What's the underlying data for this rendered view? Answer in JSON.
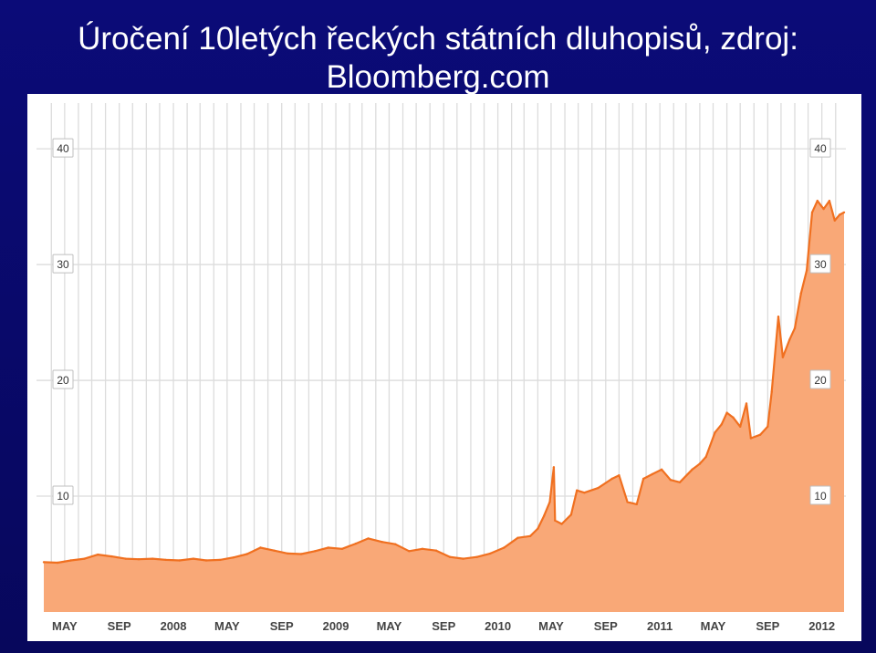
{
  "slide": {
    "title_line1": "Úročení 10letých řeckých státních dluhopisů, zdroj:",
    "title_line2": "Bloomberg.com"
  },
  "colors": {
    "background": "#0a0a6e",
    "line": "#f07020",
    "fill": "#f9a877",
    "grid": "#dcdcdc"
  },
  "chart_data": {
    "type": "area",
    "title": "",
    "xlabel": "",
    "ylabel": "",
    "ylim": [
      0,
      43
    ],
    "grid": true,
    "x_tick_labels": [
      "MAY",
      "SEP",
      "2008",
      "MAY",
      "SEP",
      "2009",
      "MAY",
      "SEP",
      "2010",
      "MAY",
      "SEP",
      "2011",
      "MAY",
      "SEP",
      "2012"
    ],
    "x_tick_dates": [
      "2007-05",
      "2007-09",
      "2008-01",
      "2008-05",
      "2008-09",
      "2009-01",
      "2009-05",
      "2009-09",
      "2010-01",
      "2010-05",
      "2010-09",
      "2011-01",
      "2011-05",
      "2011-09",
      "2012-01"
    ],
    "y_ticks": [
      10,
      20,
      30,
      40
    ],
    "y_tick_labels": [
      "10",
      "20",
      "30",
      "40"
    ],
    "x_range": [
      "2007-03-15",
      "2012-02-20"
    ],
    "series": [
      {
        "name": "",
        "points": [
          [
            "2007-03-15",
            4.3
          ],
          [
            "2007-04-15",
            4.25
          ],
          [
            "2007-05-15",
            4.45
          ],
          [
            "2007-06-15",
            4.6
          ],
          [
            "2007-07-15",
            4.95
          ],
          [
            "2007-08-15",
            4.8
          ],
          [
            "2007-09-15",
            4.6
          ],
          [
            "2007-10-15",
            4.55
          ],
          [
            "2007-11-15",
            4.6
          ],
          [
            "2007-12-15",
            4.5
          ],
          [
            "2008-01-15",
            4.45
          ],
          [
            "2008-02-15",
            4.6
          ],
          [
            "2008-03-15",
            4.45
          ],
          [
            "2008-04-15",
            4.5
          ],
          [
            "2008-05-15",
            4.7
          ],
          [
            "2008-06-15",
            5.0
          ],
          [
            "2008-07-15",
            5.55
          ],
          [
            "2008-08-15",
            5.3
          ],
          [
            "2008-09-15",
            5.05
          ],
          [
            "2008-10-15",
            5.0
          ],
          [
            "2008-11-15",
            5.25
          ],
          [
            "2008-12-15",
            5.55
          ],
          [
            "2009-01-15",
            5.45
          ],
          [
            "2009-02-15",
            5.9
          ],
          [
            "2009-03-15",
            6.35
          ],
          [
            "2009-04-15",
            6.05
          ],
          [
            "2009-05-15",
            5.85
          ],
          [
            "2009-06-15",
            5.25
          ],
          [
            "2009-07-15",
            5.45
          ],
          [
            "2009-08-15",
            5.3
          ],
          [
            "2009-09-15",
            4.75
          ],
          [
            "2009-10-15",
            4.6
          ],
          [
            "2009-11-15",
            4.75
          ],
          [
            "2009-12-15",
            5.05
          ],
          [
            "2010-01-15",
            5.55
          ],
          [
            "2010-02-15",
            6.4
          ],
          [
            "2010-03-15",
            6.55
          ],
          [
            "2010-04-01",
            7.2
          ],
          [
            "2010-04-15",
            8.3
          ],
          [
            "2010-04-28",
            9.5
          ],
          [
            "2010-05-07",
            12.5
          ],
          [
            "2010-05-10",
            7.9
          ],
          [
            "2010-05-25",
            7.6
          ],
          [
            "2010-06-15",
            8.4
          ],
          [
            "2010-06-28",
            10.5
          ],
          [
            "2010-07-15",
            10.3
          ],
          [
            "2010-08-15",
            10.7
          ],
          [
            "2010-09-15",
            11.5
          ],
          [
            "2010-10-01",
            11.8
          ],
          [
            "2010-10-20",
            9.5
          ],
          [
            "2010-11-10",
            9.3
          ],
          [
            "2010-11-25",
            11.5
          ],
          [
            "2010-12-15",
            11.9
          ],
          [
            "2011-01-05",
            12.3
          ],
          [
            "2011-01-25",
            11.4
          ],
          [
            "2011-02-15",
            11.2
          ],
          [
            "2011-03-15",
            12.3
          ],
          [
            "2011-04-01",
            12.8
          ],
          [
            "2011-04-15",
            13.4
          ],
          [
            "2011-05-05",
            15.5
          ],
          [
            "2011-05-20",
            16.2
          ],
          [
            "2011-06-01",
            17.2
          ],
          [
            "2011-06-15",
            16.8
          ],
          [
            "2011-07-01",
            16.0
          ],
          [
            "2011-07-15",
            18.0
          ],
          [
            "2011-07-25",
            15.0
          ],
          [
            "2011-08-15",
            15.3
          ],
          [
            "2011-09-01",
            16.0
          ],
          [
            "2011-09-10",
            19.0
          ],
          [
            "2011-09-25",
            25.5
          ],
          [
            "2011-10-05",
            22.0
          ],
          [
            "2011-10-20",
            23.5
          ],
          [
            "2011-11-01",
            24.5
          ],
          [
            "2011-11-15",
            27.5
          ],
          [
            "2011-11-28",
            29.5
          ],
          [
            "2011-12-10",
            34.5
          ],
          [
            "2011-12-22",
            35.5
          ],
          [
            "2012-01-05",
            34.8
          ],
          [
            "2012-01-18",
            35.5
          ],
          [
            "2012-01-30",
            33.8
          ],
          [
            "2012-02-10",
            34.3
          ],
          [
            "2012-02-20",
            34.5
          ]
        ]
      }
    ]
  }
}
